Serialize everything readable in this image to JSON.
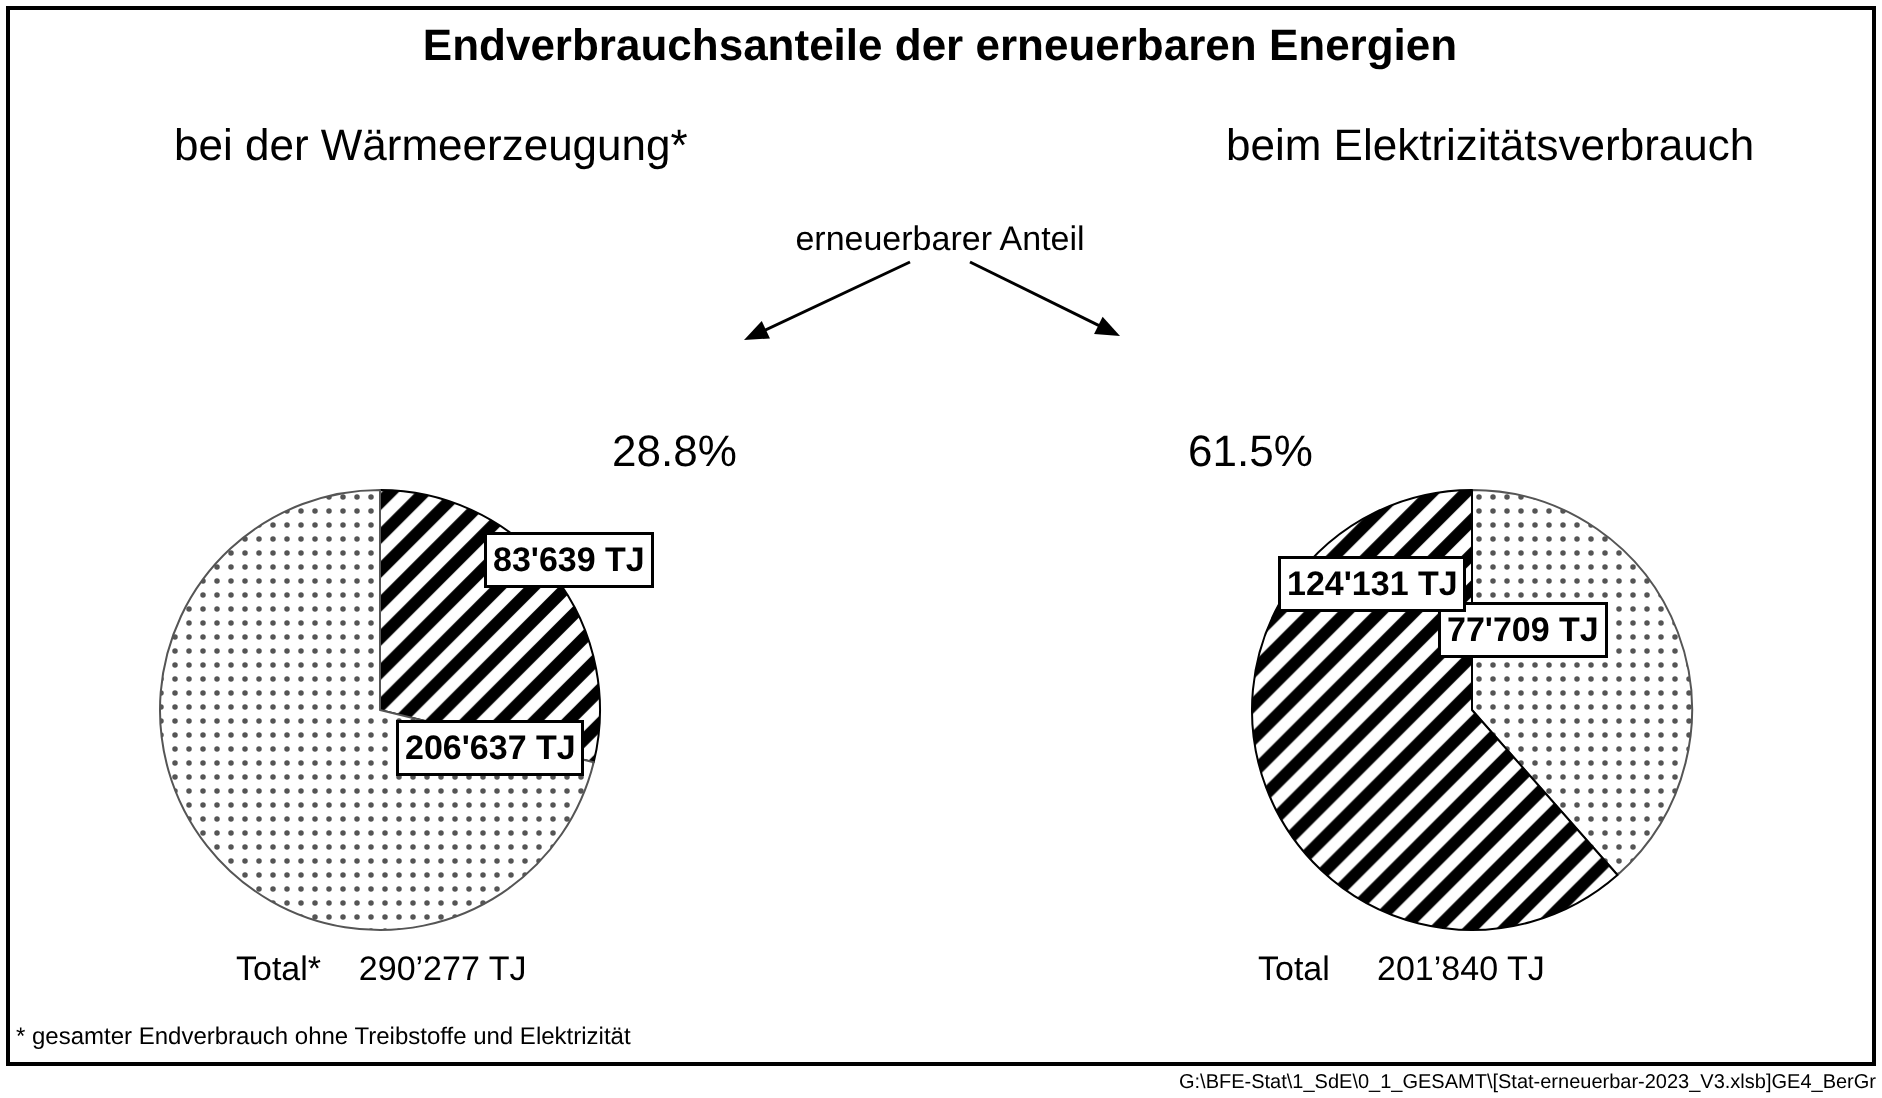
{
  "chart_data": [
    {
      "type": "pie",
      "title": "Endverbrauchsanteile der erneuerbaren Energien",
      "subtitle": "bei der Wärmeerzeugung*",
      "categories": [
        null,
        null
      ],
      "values": [
        83639,
        206637
      ],
      "colors": [
        "#000000",
        "#555555"
      ],
      "value_labels": [
        "83'639 TJ",
        "206'637 TJ"
      ],
      "legend": false,
      "annotations": [
        "28.8%",
        "Total*    290’277 TJ",
        "erneuerbarer Anteil",
        "* gesamter Endverbrauch ohne Treibstoffe und Elektrizität",
        "G:\\BFE-Stat\\1_SdE\\0_1_GESAMT\\[Stat-erneuerbar-2023_V3.xlsb]GE4_BerGr"
      ]
    },
    {
      "type": "pie",
      "subtitle": "beim Elektrizitätsverbrauch",
      "categories": [
        null,
        null
      ],
      "values": [
        77709,
        124131
      ],
      "colors": [
        "#555555",
        "#000000"
      ],
      "value_labels": [
        "77'709 TJ",
        "124'131 TJ"
      ],
      "legend": false,
      "annotations": [
        "61.5%",
        "Total     201’840 TJ"
      ]
    }
  ]
}
